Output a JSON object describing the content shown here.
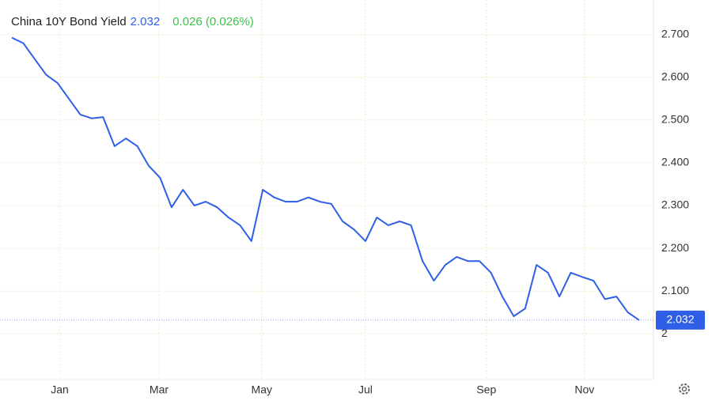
{
  "chart_data": {
    "type": "line",
    "title": "China 10Y Bond Yield",
    "price": 2.032,
    "change": "0.026 (0.026%)",
    "color": "#2f5fe6",
    "values": [
      2.693,
      2.68,
      2.643,
      2.606,
      2.587,
      2.55,
      2.513,
      2.504,
      2.507,
      2.439,
      2.457,
      2.439,
      2.393,
      2.365,
      2.296,
      2.337,
      2.3,
      2.309,
      2.296,
      2.272,
      2.254,
      2.217,
      2.337,
      2.319,
      2.309,
      2.309,
      2.319,
      2.309,
      2.304,
      2.263,
      2.244,
      2.217,
      2.272,
      2.254,
      2.263,
      2.254,
      2.17,
      2.124,
      2.161,
      2.18,
      2.17,
      2.17,
      2.143,
      2.087,
      2.041,
      2.059,
      2.161,
      2.143,
      2.087,
      2.143,
      2.133,
      2.124,
      2.081,
      2.087,
      2.05,
      2.032
    ],
    "xlim": [
      0,
      55
    ],
    "xticks": [
      {
        "value": 4.2,
        "label": "Jan"
      },
      {
        "value": 12.9,
        "label": "Mar"
      },
      {
        "value": 21.9,
        "label": "May"
      },
      {
        "value": 31,
        "label": "Jul"
      },
      {
        "value": 41.6,
        "label": "Sep"
      },
      {
        "value": 50.2,
        "label": "Nov"
      }
    ],
    "ylim": [
      1.893,
      2.781
    ],
    "yticks": [
      2,
      {
        "value": 2.1,
        "label": "2.100"
      },
      {
        "value": 2.2,
        "label": "2.200"
      },
      {
        "value": 2.3,
        "label": "2.300"
      },
      {
        "value": 2.4,
        "label": "2.400"
      },
      {
        "value": 2.5,
        "label": "2.500"
      },
      {
        "value": 2.6,
        "label": "2.600"
      },
      {
        "value": 2.7,
        "label": "2.700"
      }
    ],
    "grid": true
  }
}
